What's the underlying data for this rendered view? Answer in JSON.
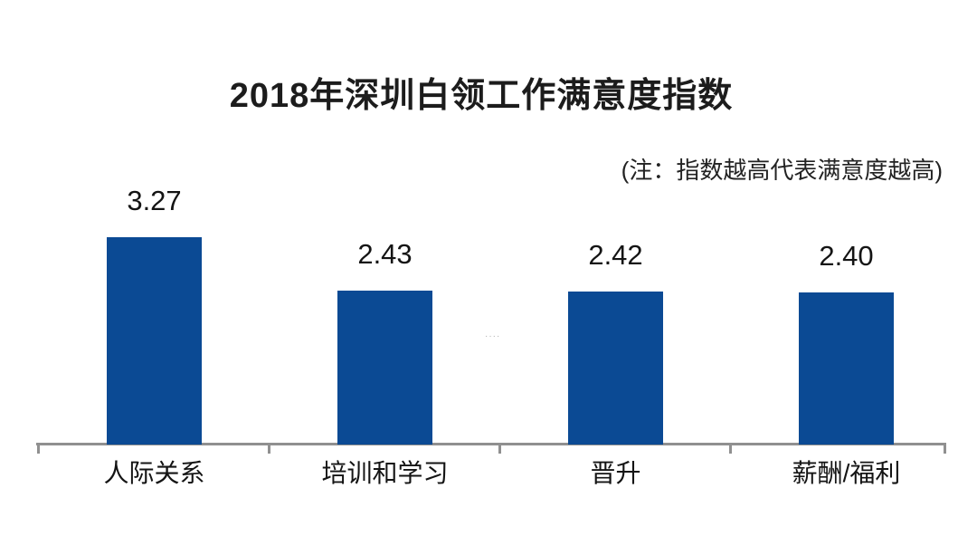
{
  "page": {
    "background": "#ffffff",
    "watermark": "····"
  },
  "chart_data": {
    "type": "bar",
    "title": "2018年深圳白领工作满意度指数",
    "annotation": "(注：指数越高代表满意度越高)",
    "categories": [
      "人际关系",
      "培训和学习",
      "晋升",
      "薪酬/福利"
    ],
    "values": [
      3.27,
      2.43,
      2.42,
      2.4
    ],
    "value_labels": [
      "3.27",
      "2.43",
      "2.42",
      "2.40"
    ],
    "xlabel": "",
    "ylabel": "",
    "ylim": [
      0,
      3.5
    ],
    "grid": false,
    "legend": "none",
    "bar_color": "#0b4a94",
    "axis_color": "#909090",
    "text_color": "#141414"
  }
}
